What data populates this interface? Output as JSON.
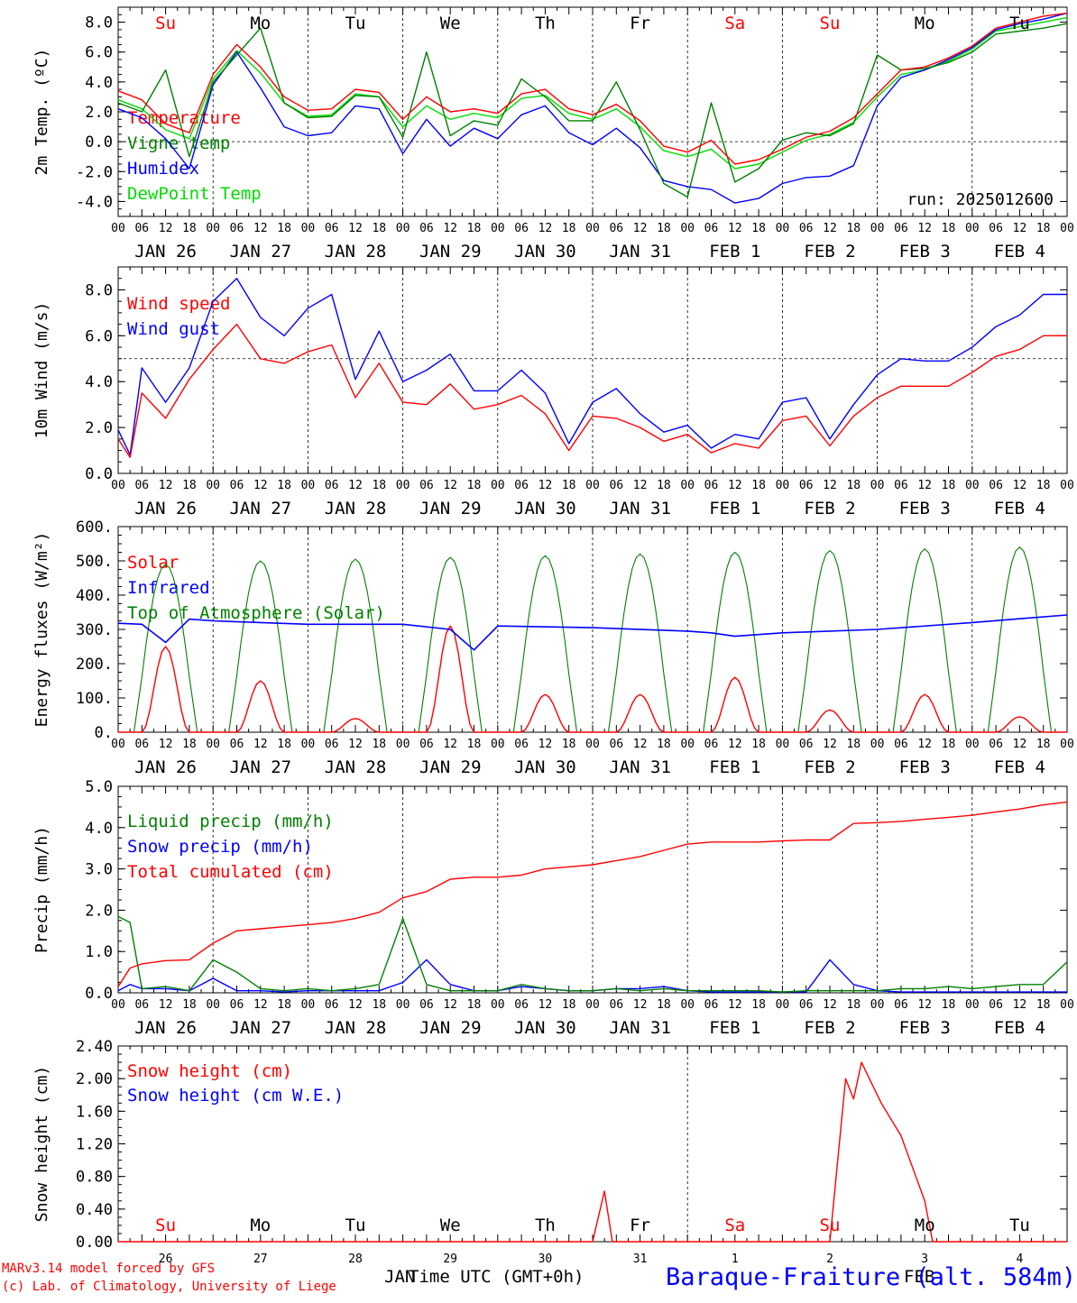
{
  "footer": {
    "credit_1": "MARv3.14 model forced by GFS",
    "credit_2": "(c) Lab. of Climatology, University of Liege",
    "xaxis_title": "Time UTC (GMT+0h)",
    "station": "Baraque-Fraiture (alt. 584m)",
    "month_left": "JAN",
    "month_right": "FEB",
    "day_numbers": [
      "26",
      "27",
      "28",
      "29",
      "30",
      "31",
      "1",
      "2",
      "3",
      "4"
    ]
  },
  "colors": {
    "red": "#ff0000",
    "blue": "#0000ff",
    "green": "#008000",
    "lightgreen": "#00dd00",
    "black": "#000000"
  },
  "weekdays": [
    "Su",
    "Mo",
    "Tu",
    "We",
    "Th",
    "Fr",
    "Sa",
    "Su",
    "Mo",
    "Tu"
  ],
  "weekday_colors": [
    "red",
    "black",
    "black",
    "black",
    "black",
    "black",
    "red",
    "red",
    "black",
    "black"
  ],
  "date_labels": [
    "JAN 26",
    "JAN 27",
    "JAN 28",
    "JAN 29",
    "JAN 30",
    "JAN 31",
    "FEB  1",
    "FEB  2",
    "FEB  3",
    "FEB  4"
  ],
  "hour_ticks": [
    "00",
    "06",
    "12",
    "18"
  ],
  "chart_data": [
    {
      "type": "line",
      "ylabel": "2m Temp. (ºC)",
      "ylim": [
        -5,
        9
      ],
      "yticks": [
        "-4.0",
        "-2.0",
        "0.0",
        "2.0",
        "4.0",
        "6.0",
        "8.0"
      ],
      "ytick_values": [
        -4,
        -2,
        0,
        2,
        4,
        6,
        8
      ],
      "reference_line": 0,
      "annotation": "run: 2025012600",
      "legend": [
        "Temperature",
        "Vigne temp",
        "Humidex",
        "DewPoint Temp"
      ],
      "x_hours": [
        0,
        6,
        12,
        18,
        24,
        30,
        36,
        42,
        48,
        54,
        60,
        66,
        72,
        78,
        84,
        90,
        96,
        102,
        108,
        114,
        120,
        126,
        132,
        138,
        144,
        150,
        156,
        162,
        168,
        174,
        180,
        186,
        192,
        198,
        204,
        210,
        216,
        222,
        228,
        234,
        240
      ],
      "series": [
        {
          "name": "Temperature",
          "color": "red",
          "values": [
            3.4,
            2.8,
            1.2,
            0.6,
            4.5,
            6.5,
            5.0,
            3.0,
            2.1,
            2.2,
            3.5,
            3.3,
            1.5,
            3.0,
            2.0,
            2.2,
            1.9,
            3.2,
            3.5,
            2.2,
            1.8,
            2.5,
            1.4,
            -0.3,
            -0.7,
            0.1,
            -1.5,
            -1.2,
            -0.5,
            0.3,
            0.7,
            1.6,
            3.2,
            4.8,
            5.0,
            5.6,
            6.4,
            7.6,
            8.0,
            8.4,
            8.6
          ]
        },
        {
          "name": "Vigne temp",
          "color": "green",
          "values": [
            2.6,
            2.0,
            4.8,
            -1.0,
            4.0,
            5.8,
            7.6,
            2.6,
            1.6,
            1.7,
            3.1,
            3.0,
            0.3,
            6.0,
            0.4,
            1.4,
            1.1,
            4.2,
            3.0,
            1.4,
            1.4,
            4.0,
            0.8,
            -2.8,
            -3.7,
            2.6,
            -2.7,
            -1.8,
            0.1,
            0.6,
            0.4,
            1.2,
            5.8,
            4.8,
            4.9,
            5.3,
            6.0,
            7.2,
            7.4,
            7.6,
            7.9
          ]
        },
        {
          "name": "Humidex",
          "color": "blue",
          "values": [
            2.2,
            1.6,
            0.2,
            -1.8,
            3.8,
            6.0,
            3.6,
            1.0,
            0.4,
            0.6,
            2.4,
            2.2,
            -0.8,
            1.5,
            -0.3,
            0.9,
            0.2,
            1.8,
            2.4,
            0.6,
            -0.2,
            0.9,
            -0.4,
            -2.6,
            -3.0,
            -3.2,
            -4.1,
            -3.8,
            -2.8,
            -2.4,
            -2.3,
            -1.6,
            2.4,
            4.3,
            4.8,
            5.5,
            6.3,
            7.5,
            7.9,
            8.2,
            8.6
          ]
        },
        {
          "name": "DewPoint Temp",
          "color": "lightgreen",
          "values": [
            2.8,
            2.2,
            0.8,
            0.2,
            4.2,
            6.1,
            4.6,
            2.6,
            1.7,
            1.8,
            3.2,
            3.0,
            1.0,
            2.4,
            1.5,
            1.9,
            1.6,
            2.9,
            3.1,
            1.9,
            1.5,
            2.2,
            1.0,
            -0.6,
            -1.0,
            -0.5,
            -1.8,
            -1.5,
            -0.7,
            0.1,
            0.5,
            1.3,
            3.0,
            4.5,
            4.8,
            5.4,
            6.2,
            7.4,
            7.7,
            8.0,
            8.3
          ]
        }
      ]
    },
    {
      "type": "line",
      "ylabel": "10m Wind (m/s)",
      "ylim": [
        0,
        9
      ],
      "yticks": [
        "0.0",
        "2.0",
        "4.0",
        "6.0",
        "8.0"
      ],
      "ytick_values": [
        0,
        2,
        4,
        6,
        8
      ],
      "reference_line": 5,
      "legend": [
        "Wind speed",
        "Wind gust"
      ],
      "x_hours": [
        0,
        3,
        6,
        12,
        18,
        24,
        30,
        36,
        42,
        48,
        54,
        60,
        66,
        72,
        78,
        84,
        90,
        96,
        102,
        108,
        114,
        120,
        126,
        132,
        138,
        144,
        150,
        156,
        162,
        168,
        174,
        180,
        186,
        192,
        198,
        204,
        210,
        216,
        222,
        228,
        234,
        240
      ],
      "series": [
        {
          "name": "Wind speed",
          "color": "red",
          "values": [
            1.5,
            0.7,
            3.5,
            2.4,
            4.1,
            5.4,
            6.5,
            5.0,
            4.8,
            5.3,
            5.6,
            3.3,
            4.8,
            3.1,
            3.0,
            3.9,
            2.8,
            3.0,
            3.4,
            2.6,
            1.0,
            2.5,
            2.4,
            2.0,
            1.4,
            1.7,
            0.9,
            1.3,
            1.1,
            2.3,
            2.5,
            1.2,
            2.5,
            3.3,
            3.8,
            3.8,
            3.8,
            4.4,
            5.1,
            5.4,
            6.0,
            6.0
          ]
        },
        {
          "name": "Wind gust",
          "color": "blue",
          "values": [
            1.9,
            0.8,
            4.6,
            3.1,
            4.6,
            7.5,
            8.5,
            6.8,
            6.0,
            7.2,
            7.8,
            4.1,
            6.2,
            4.0,
            4.5,
            5.2,
            3.6,
            3.6,
            4.5,
            3.5,
            1.3,
            3.1,
            3.7,
            2.6,
            1.8,
            2.1,
            1.1,
            1.7,
            1.5,
            3.1,
            3.3,
            1.5,
            3.0,
            4.3,
            5.0,
            4.9,
            4.9,
            5.5,
            6.4,
            6.9,
            7.8,
            7.8
          ]
        }
      ]
    },
    {
      "type": "line",
      "ylabel": "Energy fluxes (W/m²)",
      "ylim": [
        0,
        600
      ],
      "yticks": [
        "0.",
        "100.",
        "200.",
        "300.",
        "400.",
        "500.",
        "600."
      ],
      "ytick_values": [
        0,
        100,
        200,
        300,
        400,
        500,
        600
      ],
      "legend": [
        "Solar",
        "Infrared",
        "Top of Atmosphere (Solar)"
      ],
      "toa_peaks": [
        490,
        500,
        505,
        510,
        515,
        520,
        525,
        530,
        535,
        540,
        545
      ],
      "solar_peaks": [
        250,
        150,
        40,
        310,
        110,
        110,
        160,
        65,
        110,
        45
      ],
      "infrared_hours": [
        0,
        6,
        12,
        18,
        24,
        48,
        72,
        84,
        90,
        96,
        120,
        144,
        150,
        156,
        168,
        192,
        216,
        240
      ],
      "infrared_values": [
        318,
        315,
        262,
        330,
        325,
        315,
        315,
        300,
        240,
        310,
        305,
        295,
        290,
        280,
        290,
        300,
        320,
        342
      ]
    },
    {
      "type": "line",
      "ylabel": "Precip (mm/h)",
      "ylim": [
        0,
        5
      ],
      "yticks": [
        "0.0",
        "1.0",
        "2.0",
        "3.0",
        "4.0",
        "5.0"
      ],
      "ytick_values": [
        0,
        1,
        2,
        3,
        4,
        5
      ],
      "legend": [
        "Liquid precip (mm/h)",
        "Snow precip (mm/h)",
        "Total cumulated (cm)"
      ],
      "x_hours": [
        0,
        3,
        6,
        12,
        18,
        24,
        30,
        36,
        42,
        48,
        54,
        60,
        66,
        72,
        78,
        84,
        90,
        96,
        102,
        108,
        114,
        120,
        126,
        132,
        138,
        144,
        150,
        156,
        162,
        168,
        174,
        180,
        186,
        192,
        198,
        204,
        210,
        216,
        222,
        228,
        234,
        240
      ],
      "series": [
        {
          "name": "Total cumulated (cm)",
          "color": "red",
          "values": [
            0.15,
            0.6,
            0.7,
            0.78,
            0.8,
            1.2,
            1.5,
            1.55,
            1.6,
            1.65,
            1.7,
            1.8,
            1.95,
            2.3,
            2.45,
            2.75,
            2.8,
            2.8,
            2.85,
            3.0,
            3.05,
            3.1,
            3.2,
            3.3,
            3.45,
            3.6,
            3.65,
            3.65,
            3.65,
            3.68,
            3.7,
            3.7,
            4.1,
            4.12,
            4.15,
            4.2,
            4.25,
            4.3,
            4.38,
            4.45,
            4.55,
            4.62
          ]
        },
        {
          "name": "Liquid precip (mm/h)",
          "color": "green",
          "values": [
            1.85,
            1.7,
            0.1,
            0.15,
            0.05,
            0.8,
            0.5,
            0.1,
            0.05,
            0.1,
            0.05,
            0.1,
            0.2,
            1.8,
            0.2,
            0.05,
            0.05,
            0.05,
            0.2,
            0.1,
            0.05,
            0.05,
            0.1,
            0.05,
            0.1,
            0.05,
            0.05,
            0.05,
            0.05,
            0.02,
            0.05,
            0.05,
            0.05,
            0.05,
            0.1,
            0.1,
            0.15,
            0.1,
            0.15,
            0.2,
            0.2,
            0.75
          ]
        },
        {
          "name": "Snow precip (mm/h)",
          "color": "blue",
          "values": [
            0.05,
            0.2,
            0.1,
            0.1,
            0.05,
            0.35,
            0.05,
            0.05,
            0.02,
            0.05,
            0.05,
            0.05,
            0.05,
            0.25,
            0.8,
            0.2,
            0.05,
            0.05,
            0.15,
            0.1,
            0.05,
            0.05,
            0.1,
            0.1,
            0.15,
            0.05,
            0.02,
            0.02,
            0.02,
            0.02,
            0.02,
            0.8,
            0.2,
            0.05,
            0.02,
            0.02,
            0.02,
            0.02,
            0.02,
            0.02,
            0.02,
            0.02
          ]
        }
      ]
    },
    {
      "type": "line",
      "ylabel": "Snow height (cm)",
      "ylim": [
        0,
        2.4
      ],
      "yticks": [
        "0.00",
        "0.40",
        "0.80",
        "1.20",
        "1.60",
        "2.00",
        "2.40"
      ],
      "ytick_values": [
        0,
        0.4,
        0.8,
        1.2,
        1.6,
        2.0,
        2.4
      ],
      "legend": [
        "Snow height (cm)",
        "Snow height (cm W.E.)"
      ],
      "x_hours": [
        0,
        120,
        123,
        125,
        126,
        180,
        184,
        186,
        188,
        190,
        193,
        198,
        204,
        206,
        240
      ],
      "series": [
        {
          "name": "Snow height (cm)",
          "color": "red",
          "values": [
            0,
            0,
            0.62,
            0,
            0,
            0,
            2.0,
            1.75,
            2.2,
            2.0,
            1.7,
            1.3,
            0.5,
            0,
            0
          ]
        }
      ]
    }
  ]
}
